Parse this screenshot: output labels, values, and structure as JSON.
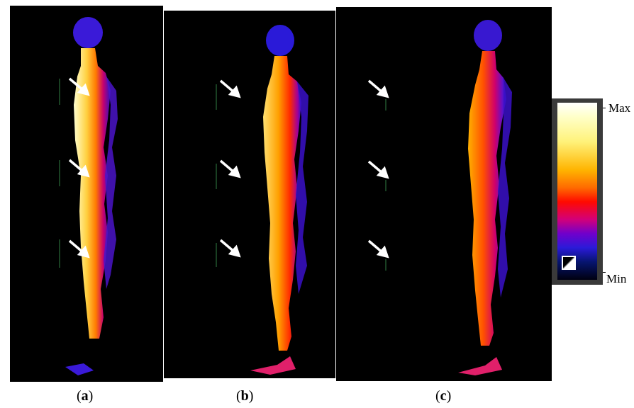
{
  "figure": {
    "panels": [
      {
        "id": "a",
        "label": "a"
      },
      {
        "id": "b",
        "label": "b"
      },
      {
        "id": "c",
        "label": "c"
      }
    ]
  },
  "colorbar": {
    "max_label": "Max",
    "min_label": "Min",
    "colors": [
      "#ffffff",
      "#fff27a",
      "#ffb400",
      "#ff0a00",
      "#d2007a",
      "#7000cc",
      "#2a1ad8",
      "#000010"
    ]
  }
}
